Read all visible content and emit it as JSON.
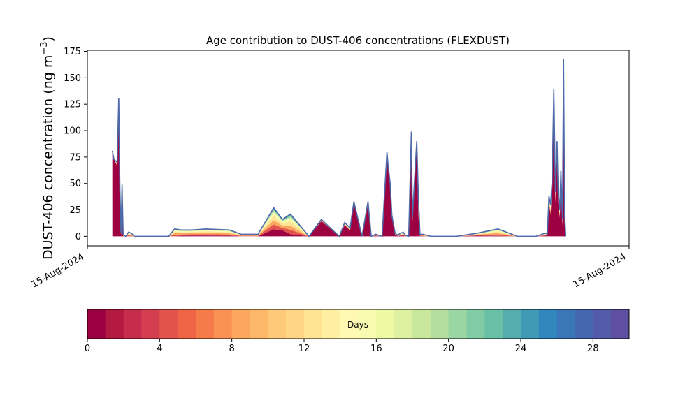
{
  "chart_data": [
    {
      "type": "area",
      "title": "Age contribution to DUST-406 concentrations (FLEXDUST)",
      "ylabel": "DUST-406 concentration (ng m⁻³)",
      "ylabel_main": "DUST-406 concentration (ng m",
      "ylabel_sup": "−3",
      "ylabel_close": ")",
      "xlabel": "",
      "xlim": [
        0,
        1
      ],
      "ylim": [
        -9,
        176
      ],
      "x_ticks": [
        {
          "pos": 0,
          "label": "15-Aug-2024"
        },
        {
          "pos": 1,
          "label": "15-Aug-2024"
        }
      ],
      "y_ticks": [
        0,
        25,
        50,
        75,
        100,
        125,
        150,
        175
      ],
      "grid": false,
      "x": [
        0.046,
        0.049,
        0.055,
        0.058,
        0.06,
        0.062,
        0.064,
        0.066,
        0.068,
        0.071,
        0.076,
        0.081,
        0.087,
        0.104,
        0.137,
        0.15,
        0.161,
        0.173,
        0.193,
        0.219,
        0.262,
        0.284,
        0.292,
        0.307,
        0.315,
        0.344,
        0.36,
        0.375,
        0.409,
        0.432,
        0.465,
        0.475,
        0.485,
        0.492,
        0.507,
        0.518,
        0.524,
        0.532,
        0.544,
        0.553,
        0.555,
        0.559,
        0.562,
        0.568,
        0.573,
        0.575,
        0.583,
        0.587,
        0.593,
        0.598,
        0.6,
        0.608,
        0.611,
        0.614,
        0.619,
        0.635,
        0.681,
        0.72,
        0.758,
        0.794,
        0.828,
        0.845,
        0.849,
        0.852,
        0.855,
        0.858,
        0.861,
        0.864,
        0.867,
        0.869,
        0.872,
        0.874,
        0.877,
        0.879,
        0.881,
        0.883
      ],
      "total": [
        81,
        73,
        70,
        131,
        45,
        3,
        49,
        2,
        1,
        0,
        4,
        3,
        0,
        0,
        0,
        0,
        7,
        6,
        6,
        7,
        6,
        2,
        2,
        2,
        2,
        27,
        16,
        21,
        0,
        16,
        0,
        13,
        8,
        33,
        0,
        33,
        0,
        2,
        0,
        80,
        68,
        50,
        20,
        3,
        1,
        2,
        4,
        1,
        0,
        99,
        18,
        90,
        38,
        2,
        2,
        0,
        0,
        3,
        7,
        0,
        0,
        3,
        2,
        38,
        30,
        52,
        139,
        42,
        90,
        42,
        25,
        62,
        16,
        168,
        20,
        0
      ],
      "young_fraction": [
        1.0,
        1.0,
        0.95,
        0.9,
        0.6,
        0.2,
        0.5,
        0.2,
        0,
        0,
        0,
        0,
        0,
        0,
        0,
        0,
        0,
        0.1,
        0.12,
        0.1,
        0.1,
        0.05,
        0.05,
        0.05,
        0.05,
        0.25,
        0.35,
        0.1,
        0,
        0.9,
        0,
        0.8,
        0.7,
        0.95,
        0,
        0.9,
        0,
        0.3,
        0,
        0.95,
        0.95,
        0.95,
        0.9,
        0.5,
        0.3,
        0.2,
        0.2,
        0.2,
        0,
        0.95,
        0.8,
        0.95,
        0.5,
        0.2,
        0.1,
        0,
        0,
        0.2,
        0.05,
        0,
        0,
        0.2,
        0.3,
        0.8,
        0.7,
        0.8,
        0.85,
        0.75,
        0.85,
        0.8,
        0.7,
        0.8,
        0.6,
        0.9,
        0.7,
        0
      ],
      "color_outline": "#4f6aa8"
    },
    {
      "type": "colorbar",
      "label": "Days",
      "range": [
        0,
        30
      ],
      "bins": 30,
      "ticks": [
        0,
        4,
        8,
        12,
        16,
        20,
        24,
        28
      ],
      "colors": [
        "#9e0142",
        "#b3183f",
        "#c62c4c",
        "#d53e4f",
        "#e2534b",
        "#ee6545",
        "#f57c4a",
        "#f99254",
        "#fca75e",
        "#fdb969",
        "#fec978",
        "#fed685",
        "#fee493",
        "#feefa2",
        "#fff9b4",
        "#f8fbb0",
        "#eef8a5",
        "#ddf1a1",
        "#c9e89e",
        "#b3de9f",
        "#9ad5a4",
        "#82cca5",
        "#6ac0a6",
        "#55aeac",
        "#4099b5",
        "#3288bd",
        "#3b77b8",
        "#4666af",
        "#545ba8",
        "#5e4fa2"
      ]
    }
  ]
}
